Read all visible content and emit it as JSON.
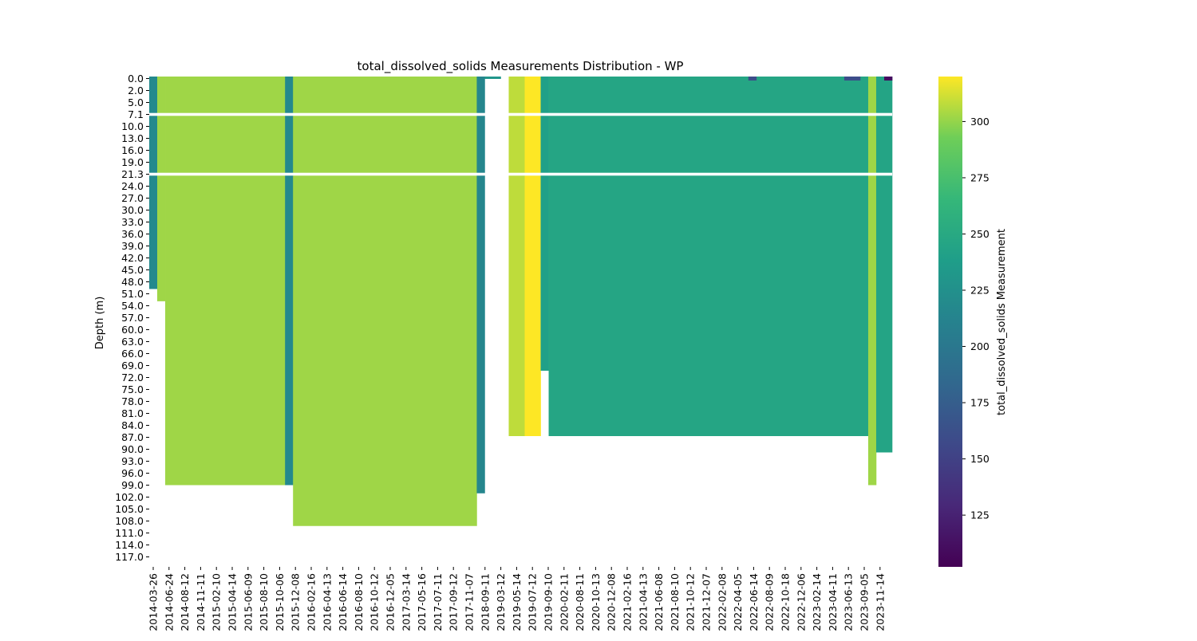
{
  "chart_data": {
    "type": "heatmap",
    "title": "total_dissolved_solids Measurements Distribution - WP",
    "xlabel": "",
    "ylabel": "Depth (m)",
    "colorbar_label": "total_dissolved_solids Measurement",
    "colormap": "viridis",
    "colorbar_range": [
      102,
      320
    ],
    "colorbar_ticks": [
      125,
      150,
      175,
      200,
      225,
      250,
      275,
      300
    ],
    "x_tick_labels": [
      "2014-03-26",
      "2014-06-24",
      "2014-08-12",
      "2014-11-11",
      "2015-02-10",
      "2015-04-14",
      "2015-06-09",
      "2015-08-10",
      "2015-10-06",
      "2015-12-08",
      "2016-02-16",
      "2016-04-13",
      "2016-06-14",
      "2016-08-10",
      "2016-10-12",
      "2016-12-05",
      "2017-03-14",
      "2017-05-16",
      "2017-07-11",
      "2017-09-12",
      "2017-11-07",
      "2018-09-11",
      "2019-03-12",
      "2019-05-14",
      "2019-07-12",
      "2019-09-10",
      "2020-02-11",
      "2020-08-11",
      "2020-10-13",
      "2020-12-08",
      "2021-02-16",
      "2021-04-13",
      "2021-06-08",
      "2021-08-10",
      "2021-10-12",
      "2021-12-07",
      "2022-02-08",
      "2022-04-05",
      "2022-06-14",
      "2022-08-09",
      "2022-10-18",
      "2022-12-06",
      "2023-02-14",
      "2023-04-11",
      "2023-06-13",
      "2023-09-05",
      "2023-11-14"
    ],
    "y_tick_labels": [
      "0.0",
      "2.0",
      "5.0",
      "7.1",
      "10.0",
      "13.0",
      "16.0",
      "19.0",
      "21.3",
      "24.0",
      "27.0",
      "30.0",
      "33.0",
      "36.0",
      "39.0",
      "42.0",
      "45.0",
      "48.0",
      "51.0",
      "54.0",
      "57.0",
      "60.0",
      "63.0",
      "66.0",
      "69.0",
      "72.0",
      "75.0",
      "78.0",
      "81.0",
      "84.0",
      "87.0",
      "90.0",
      "93.0",
      "96.0",
      "99.0",
      "102.0",
      "105.0",
      "108.0",
      "111.0",
      "114.0",
      "117.0"
    ],
    "columns_per_tick": 2,
    "n_columns": 93,
    "depth_range": [
      0,
      120
    ],
    "missing_rows": [
      "7.1",
      "21.3"
    ],
    "column_groups": [
      {
        "first_col": 0,
        "last_col": 0,
        "value": 218,
        "max_depth": 52
      },
      {
        "first_col": 1,
        "last_col": 1,
        "value": 302,
        "max_depth": 55
      },
      {
        "first_col": 2,
        "last_col": 16,
        "value": 302,
        "max_depth": 100
      },
      {
        "first_col": 17,
        "last_col": 17,
        "value": 218,
        "max_depth": 100
      },
      {
        "first_col": 18,
        "last_col": 40,
        "value": 302,
        "max_depth": 110
      },
      {
        "first_col": 41,
        "last_col": 41,
        "value": 215,
        "max_depth": 102
      },
      {
        "first_col": 42,
        "last_col": 43,
        "value": 230,
        "max_depth": 0.5
      },
      {
        "first_col": 45,
        "last_col": 46,
        "value": 308,
        "max_depth": 88
      },
      {
        "first_col": 47,
        "last_col": 48,
        "value": 320,
        "max_depth": 88
      },
      {
        "first_col": 49,
        "last_col": 49,
        "value": 240,
        "max_depth": 72
      },
      {
        "first_col": 50,
        "last_col": 89,
        "value": 246,
        "max_depth": 88
      },
      {
        "first_col": 90,
        "last_col": 90,
        "value": 302,
        "max_depth": 100
      },
      {
        "first_col": 91,
        "last_col": 92,
        "value": 245,
        "max_depth": 92
      }
    ],
    "surface_cells": [
      {
        "col": 75,
        "value": 160
      },
      {
        "col": 87,
        "value": 160
      },
      {
        "col": 88,
        "value": 160
      },
      {
        "col": 92,
        "value": 110
      }
    ]
  }
}
